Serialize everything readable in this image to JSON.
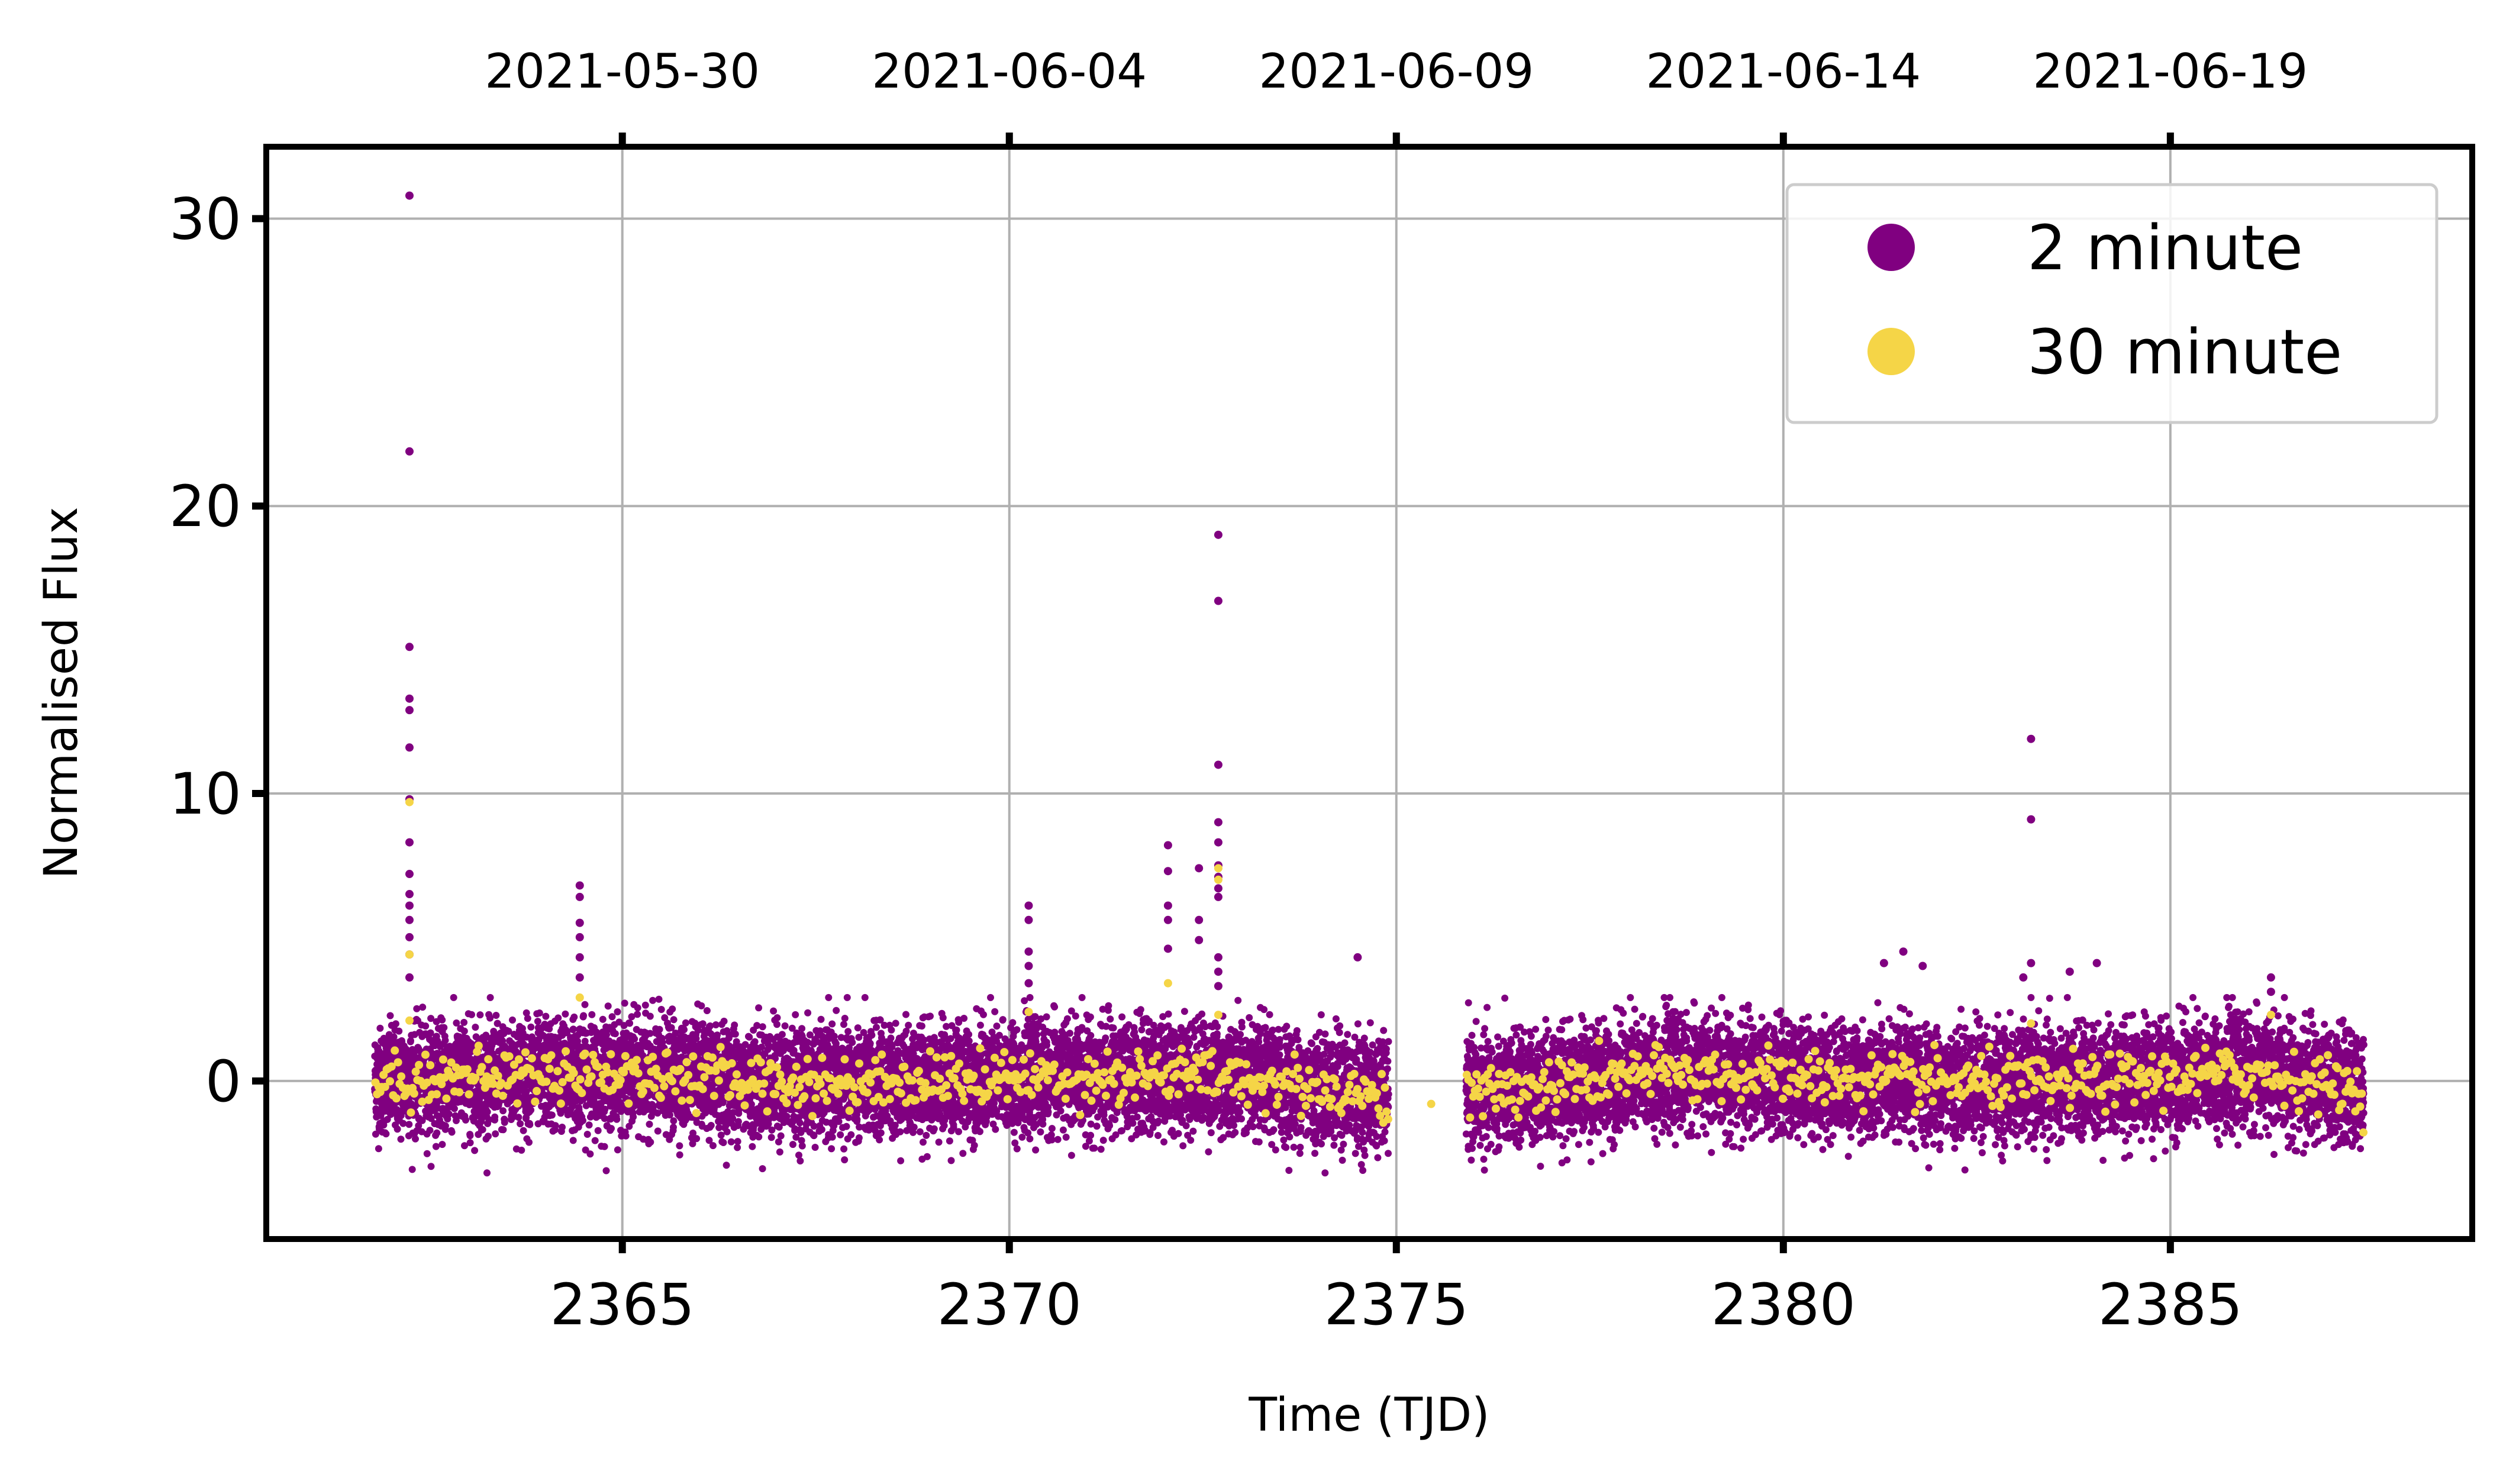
{
  "chart_data": {
    "type": "scatter",
    "xlabel": "Time (TJD)",
    "ylabel": "Normalised Flux",
    "xlim": [
      2360.4,
      2388.9
    ],
    "ylim": [
      -5.5,
      32.5
    ],
    "grid": true,
    "legend_position": "top-right",
    "x_ticks": [
      2365,
      2370,
      2375,
      2380,
      2385
    ],
    "x_tick_labels": [
      "2365",
      "2370",
      "2375",
      "2380",
      "2385"
    ],
    "y_ticks": [
      0,
      10,
      20,
      30
    ],
    "y_tick_labels": [
      "0",
      "10",
      "20",
      "30"
    ],
    "top_ticks": [
      2365,
      2370,
      2375,
      2380,
      2385
    ],
    "top_tick_labels": [
      "2021-05-30",
      "2021-06-04",
      "2021-06-09",
      "2021-06-14",
      "2021-06-19"
    ],
    "segments": [
      [
        2361.8,
        2374.9
      ],
      [
        2375.9,
        2387.5
      ]
    ],
    "series": [
      {
        "name": "2 minute",
        "color": "#800080",
        "scatter_sigma": 0.9,
        "baseline": [
          [
            2361.8,
            0.0
          ],
          [
            2364.5,
            0.3
          ],
          [
            2367.5,
            -0.1
          ],
          [
            2370.0,
            0.1
          ],
          [
            2372.5,
            0.2
          ],
          [
            2374.9,
            -0.5
          ],
          [
            2375.9,
            -0.5
          ],
          [
            2378.5,
            0.3
          ],
          [
            2381.0,
            0.0
          ],
          [
            2383.5,
            -0.1
          ],
          [
            2386.0,
            0.3
          ],
          [
            2387.5,
            -0.3
          ]
        ],
        "flare_points": [
          [
            2362.25,
            30.8
          ],
          [
            2362.25,
            21.9
          ],
          [
            2362.25,
            15.1
          ],
          [
            2362.25,
            13.3
          ],
          [
            2362.25,
            12.9
          ],
          [
            2362.25,
            11.6
          ],
          [
            2362.25,
            9.8
          ],
          [
            2362.25,
            8.3
          ],
          [
            2362.25,
            7.2
          ],
          [
            2362.25,
            6.5
          ],
          [
            2362.25,
            6.1
          ],
          [
            2362.25,
            5.6
          ],
          [
            2362.25,
            5.0
          ],
          [
            2362.25,
            4.4
          ],
          [
            2362.25,
            3.6
          ],
          [
            2364.45,
            6.8
          ],
          [
            2364.45,
            6.4
          ],
          [
            2364.45,
            5.5
          ],
          [
            2364.45,
            5.0
          ],
          [
            2364.45,
            4.3
          ],
          [
            2364.45,
            3.6
          ],
          [
            2370.25,
            6.1
          ],
          [
            2370.25,
            5.6
          ],
          [
            2370.25,
            4.5
          ],
          [
            2370.25,
            4.0
          ],
          [
            2370.25,
            3.4
          ],
          [
            2372.05,
            8.2
          ],
          [
            2372.05,
            7.3
          ],
          [
            2372.05,
            6.1
          ],
          [
            2372.05,
            5.6
          ],
          [
            2372.05,
            4.6
          ],
          [
            2372.45,
            7.4
          ],
          [
            2372.45,
            5.6
          ],
          [
            2372.45,
            4.9
          ],
          [
            2372.7,
            19.0
          ],
          [
            2372.7,
            16.7
          ],
          [
            2372.7,
            11.0
          ],
          [
            2372.7,
            9.0
          ],
          [
            2372.7,
            8.3
          ],
          [
            2372.7,
            7.5
          ],
          [
            2372.7,
            7.1
          ],
          [
            2372.7,
            6.7
          ],
          [
            2372.7,
            6.4
          ],
          [
            2372.7,
            4.3
          ],
          [
            2372.7,
            3.8
          ],
          [
            2372.7,
            3.3
          ],
          [
            2374.5,
            4.3
          ],
          [
            2381.55,
            4.5
          ],
          [
            2381.3,
            4.1
          ],
          [
            2381.8,
            4.0
          ],
          [
            2383.2,
            11.9
          ],
          [
            2383.2,
            9.1
          ],
          [
            2383.2,
            4.1
          ],
          [
            2383.1,
            3.6
          ],
          [
            2384.05,
            4.1
          ],
          [
            2383.7,
            3.8
          ],
          [
            2386.3,
            3.6
          ],
          [
            2386.3,
            3.1
          ]
        ]
      },
      {
        "name": "30 minute",
        "color": "#f5d547",
        "scatter_sigma": 0.45,
        "baseline": [
          [
            2361.8,
            0.0
          ],
          [
            2364.5,
            0.3
          ],
          [
            2367.5,
            -0.1
          ],
          [
            2370.0,
            0.1
          ],
          [
            2372.5,
            0.2
          ],
          [
            2374.9,
            -0.5
          ],
          [
            2375.4,
            -0.8
          ],
          [
            2375.9,
            -0.5
          ],
          [
            2378.5,
            0.3
          ],
          [
            2381.0,
            0.0
          ],
          [
            2383.5,
            -0.1
          ],
          [
            2386.0,
            0.3
          ],
          [
            2387.5,
            -0.3
          ]
        ],
        "flare_points": [
          [
            2362.25,
            9.7
          ],
          [
            2362.25,
            4.4
          ],
          [
            2362.25,
            2.1
          ],
          [
            2364.45,
            2.9
          ],
          [
            2370.25,
            2.4
          ],
          [
            2372.05,
            3.4
          ],
          [
            2372.7,
            7.4
          ],
          [
            2372.7,
            7.0
          ],
          [
            2372.7,
            2.3
          ],
          [
            2375.45,
            -0.8
          ],
          [
            2383.2,
            2.0
          ],
          [
            2386.3,
            2.3
          ]
        ]
      }
    ]
  }
}
